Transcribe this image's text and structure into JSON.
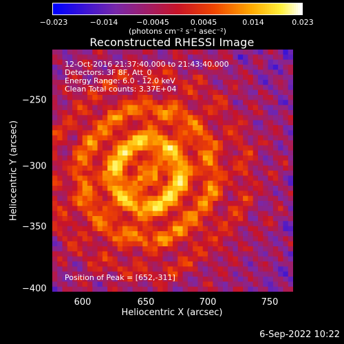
{
  "colorbar": {
    "ticks": [
      "−0.023",
      "−0.014",
      "−0.0045",
      "0.0045",
      "0.014",
      "0.023"
    ],
    "tick_values": [
      -0.023,
      -0.014,
      -0.0045,
      0.0045,
      0.014,
      0.023
    ],
    "range": [
      -0.023,
      0.023
    ],
    "units": "(photons cm⁻² s⁻¹ asec⁻²)"
  },
  "chart_data": {
    "type": "heatmap",
    "title": "Reconstructed RHESSI Image",
    "xlabel": "Heliocentric X (arcsec)",
    "ylabel": "Heliocentric Y (arcsec)",
    "xlim": [
      577,
      767
    ],
    "ylim": [
      -404,
      -213
    ],
    "x_ticks": [
      "600",
      "650",
      "700",
      "750"
    ],
    "x_tick_values": [
      600,
      650,
      700,
      750
    ],
    "y_ticks": [
      "−250",
      "−300",
      "−350",
      "−400"
    ],
    "y_tick_values": [
      -250,
      -300,
      -350,
      -400
    ],
    "peak": {
      "x": 652,
      "y": -311
    },
    "colormap": "rainbow/fire (blue-purple-red-orange-yellow-white)",
    "annotations": [
      "12-Oct-2016 21:37:40.000 to 21:43:40.000",
      "Detectors: 3F 8F, Att_0",
      "Energy Range: 6.0 - 12.0 keV",
      "Clean     Total counts: 3.37E+04"
    ],
    "peak_label": "Position of Peak = [652,-311]"
  },
  "footer": {
    "timestamp": "6-Sep-2022 10:22"
  }
}
